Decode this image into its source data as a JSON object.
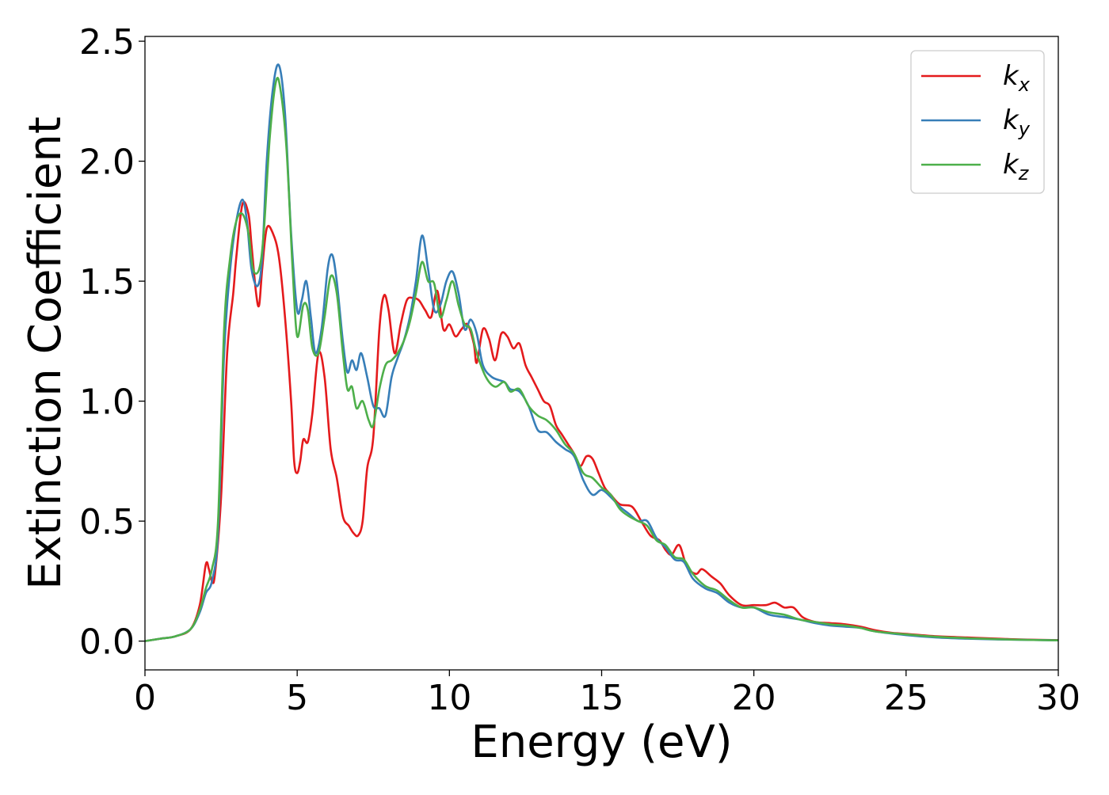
{
  "chart_data": {
    "type": "line",
    "xlabel": "Energy (eV)",
    "ylabel": "Extinction Coefficient",
    "xlim": [
      0,
      30
    ],
    "ylim": [
      -0.12,
      2.52
    ],
    "x_ticks": [
      0,
      5,
      10,
      15,
      20,
      25,
      30
    ],
    "x_tick_labels": [
      "0",
      "5",
      "10",
      "15",
      "20",
      "25",
      "30"
    ],
    "y_ticks": [
      0.0,
      0.5,
      1.0,
      1.5,
      2.0,
      2.5
    ],
    "y_tick_labels": [
      "0.0",
      "0.5",
      "1.0",
      "1.5",
      "2.0",
      "2.5"
    ],
    "grid": false,
    "legend_position": "top-right",
    "series": [
      {
        "name": "k_x",
        "label_base": "k",
        "label_sub": "x",
        "color": "#e41a1c",
        "points": [
          [
            0,
            0
          ],
          [
            0.5,
            0.01
          ],
          [
            1,
            0.02
          ],
          [
            1.5,
            0.05
          ],
          [
            1.8,
            0.15
          ],
          [
            2.0,
            0.32
          ],
          [
            2.1,
            0.3
          ],
          [
            2.2,
            0.25
          ],
          [
            2.3,
            0.28
          ],
          [
            2.5,
            0.6
          ],
          [
            2.7,
            1.2
          ],
          [
            2.9,
            1.45
          ],
          [
            3.0,
            1.6
          ],
          [
            3.2,
            1.82
          ],
          [
            3.4,
            1.78
          ],
          [
            3.5,
            1.65
          ],
          [
            3.65,
            1.45
          ],
          [
            3.75,
            1.4
          ],
          [
            3.85,
            1.55
          ],
          [
            4.0,
            1.72
          ],
          [
            4.2,
            1.7
          ],
          [
            4.4,
            1.6
          ],
          [
            4.6,
            1.35
          ],
          [
            4.8,
            1.0
          ],
          [
            4.9,
            0.75
          ],
          [
            5.0,
            0.7
          ],
          [
            5.1,
            0.75
          ],
          [
            5.2,
            0.84
          ],
          [
            5.35,
            0.83
          ],
          [
            5.5,
            0.95
          ],
          [
            5.7,
            1.2
          ],
          [
            5.9,
            1.1
          ],
          [
            6.1,
            0.8
          ],
          [
            6.3,
            0.68
          ],
          [
            6.5,
            0.52
          ],
          [
            6.7,
            0.48
          ],
          [
            6.85,
            0.45
          ],
          [
            7.0,
            0.44
          ],
          [
            7.15,
            0.5
          ],
          [
            7.3,
            0.72
          ],
          [
            7.5,
            0.85
          ],
          [
            7.7,
            1.3
          ],
          [
            7.85,
            1.44
          ],
          [
            8.0,
            1.38
          ],
          [
            8.2,
            1.2
          ],
          [
            8.4,
            1.32
          ],
          [
            8.6,
            1.42
          ],
          [
            8.8,
            1.43
          ],
          [
            9.0,
            1.42
          ],
          [
            9.2,
            1.38
          ],
          [
            9.4,
            1.35
          ],
          [
            9.6,
            1.46
          ],
          [
            9.8,
            1.3
          ],
          [
            10.0,
            1.32
          ],
          [
            10.2,
            1.27
          ],
          [
            10.4,
            1.3
          ],
          [
            10.6,
            1.32
          ],
          [
            10.8,
            1.24
          ],
          [
            10.9,
            1.16
          ],
          [
            11.1,
            1.3
          ],
          [
            11.3,
            1.26
          ],
          [
            11.5,
            1.17
          ],
          [
            11.7,
            1.28
          ],
          [
            11.9,
            1.27
          ],
          [
            12.1,
            1.22
          ],
          [
            12.3,
            1.24
          ],
          [
            12.5,
            1.15
          ],
          [
            12.7,
            1.1
          ],
          [
            12.9,
            1.05
          ],
          [
            13.1,
            1.0
          ],
          [
            13.3,
            0.98
          ],
          [
            13.5,
            0.9
          ],
          [
            13.7,
            0.86
          ],
          [
            13.9,
            0.82
          ],
          [
            14.1,
            0.78
          ],
          [
            14.3,
            0.73
          ],
          [
            14.5,
            0.77
          ],
          [
            14.7,
            0.76
          ],
          [
            14.9,
            0.7
          ],
          [
            15.1,
            0.64
          ],
          [
            15.3,
            0.61
          ],
          [
            15.6,
            0.57
          ],
          [
            16.0,
            0.56
          ],
          [
            16.3,
            0.5
          ],
          [
            16.6,
            0.44
          ],
          [
            16.9,
            0.42
          ],
          [
            17.1,
            0.38
          ],
          [
            17.3,
            0.36
          ],
          [
            17.55,
            0.4
          ],
          [
            17.8,
            0.31
          ],
          [
            18.1,
            0.28
          ],
          [
            18.3,
            0.3
          ],
          [
            18.6,
            0.27
          ],
          [
            18.9,
            0.24
          ],
          [
            19.2,
            0.19
          ],
          [
            19.6,
            0.15
          ],
          [
            20.0,
            0.15
          ],
          [
            20.4,
            0.15
          ],
          [
            20.7,
            0.16
          ],
          [
            21.0,
            0.14
          ],
          [
            21.3,
            0.14
          ],
          [
            21.6,
            0.1
          ],
          [
            22.0,
            0.08
          ],
          [
            22.5,
            0.075
          ],
          [
            23.0,
            0.07
          ],
          [
            23.5,
            0.06
          ],
          [
            24.0,
            0.045
          ],
          [
            24.5,
            0.035
          ],
          [
            25.0,
            0.03
          ],
          [
            26.0,
            0.02
          ],
          [
            27.0,
            0.015
          ],
          [
            28.0,
            0.01
          ],
          [
            29.0,
            0.006
          ],
          [
            30.0,
            0.004
          ]
        ]
      },
      {
        "name": "k_y",
        "label_base": "k",
        "label_sub": "y",
        "color": "#377eb8",
        "points": [
          [
            0,
            0
          ],
          [
            0.5,
            0.01
          ],
          [
            1,
            0.02
          ],
          [
            1.5,
            0.05
          ],
          [
            1.8,
            0.12
          ],
          [
            2.0,
            0.2
          ],
          [
            2.2,
            0.25
          ],
          [
            2.4,
            0.45
          ],
          [
            2.6,
            1.2
          ],
          [
            2.8,
            1.55
          ],
          [
            3.0,
            1.75
          ],
          [
            3.2,
            1.84
          ],
          [
            3.35,
            1.75
          ],
          [
            3.5,
            1.55
          ],
          [
            3.7,
            1.48
          ],
          [
            3.85,
            1.6
          ],
          [
            4.0,
            2.0
          ],
          [
            4.2,
            2.3
          ],
          [
            4.4,
            2.4
          ],
          [
            4.6,
            2.2
          ],
          [
            4.8,
            1.7
          ],
          [
            5.0,
            1.38
          ],
          [
            5.15,
            1.42
          ],
          [
            5.3,
            1.5
          ],
          [
            5.45,
            1.35
          ],
          [
            5.6,
            1.2
          ],
          [
            5.8,
            1.3
          ],
          [
            6.0,
            1.55
          ],
          [
            6.15,
            1.61
          ],
          [
            6.3,
            1.5
          ],
          [
            6.5,
            1.25
          ],
          [
            6.65,
            1.12
          ],
          [
            6.8,
            1.17
          ],
          [
            6.95,
            1.13
          ],
          [
            7.1,
            1.2
          ],
          [
            7.3,
            1.1
          ],
          [
            7.5,
            0.98
          ],
          [
            7.7,
            0.97
          ],
          [
            7.9,
            0.94
          ],
          [
            8.1,
            1.1
          ],
          [
            8.3,
            1.18
          ],
          [
            8.5,
            1.25
          ],
          [
            8.7,
            1.35
          ],
          [
            8.9,
            1.5
          ],
          [
            9.1,
            1.69
          ],
          [
            9.3,
            1.55
          ],
          [
            9.5,
            1.38
          ],
          [
            9.7,
            1.4
          ],
          [
            9.9,
            1.5
          ],
          [
            10.1,
            1.54
          ],
          [
            10.3,
            1.45
          ],
          [
            10.5,
            1.3
          ],
          [
            10.7,
            1.34
          ],
          [
            10.9,
            1.28
          ],
          [
            11.1,
            1.15
          ],
          [
            11.4,
            1.1
          ],
          [
            11.8,
            1.08
          ],
          [
            12.0,
            1.05
          ],
          [
            12.3,
            1.04
          ],
          [
            12.6,
            0.98
          ],
          [
            12.9,
            0.88
          ],
          [
            13.2,
            0.87
          ],
          [
            13.5,
            0.83
          ],
          [
            13.8,
            0.8
          ],
          [
            14.1,
            0.77
          ],
          [
            14.4,
            0.67
          ],
          [
            14.7,
            0.61
          ],
          [
            15.0,
            0.63
          ],
          [
            15.3,
            0.6
          ],
          [
            15.6,
            0.56
          ],
          [
            15.9,
            0.53
          ],
          [
            16.2,
            0.5
          ],
          [
            16.5,
            0.5
          ],
          [
            16.8,
            0.43
          ],
          [
            17.1,
            0.39
          ],
          [
            17.4,
            0.34
          ],
          [
            17.7,
            0.33
          ],
          [
            18.0,
            0.26
          ],
          [
            18.4,
            0.22
          ],
          [
            18.8,
            0.2
          ],
          [
            19.2,
            0.16
          ],
          [
            19.6,
            0.14
          ],
          [
            20.0,
            0.14
          ],
          [
            20.5,
            0.11
          ],
          [
            21.0,
            0.1
          ],
          [
            21.5,
            0.09
          ],
          [
            22.0,
            0.075
          ],
          [
            22.5,
            0.065
          ],
          [
            23.0,
            0.06
          ],
          [
            23.5,
            0.055
          ],
          [
            24.0,
            0.04
          ],
          [
            25.0,
            0.025
          ],
          [
            26.0,
            0.015
          ],
          [
            27.0,
            0.01
          ],
          [
            28.0,
            0.007
          ],
          [
            29.0,
            0.005
          ],
          [
            30.0,
            0.003
          ]
        ]
      },
      {
        "name": "k_z",
        "label_base": "k",
        "label_sub": "z",
        "color": "#4daf4a",
        "points": [
          [
            0,
            0
          ],
          [
            0.5,
            0.01
          ],
          [
            1,
            0.02
          ],
          [
            1.5,
            0.05
          ],
          [
            1.8,
            0.13
          ],
          [
            2.0,
            0.22
          ],
          [
            2.2,
            0.3
          ],
          [
            2.4,
            0.5
          ],
          [
            2.6,
            1.3
          ],
          [
            2.8,
            1.6
          ],
          [
            3.0,
            1.75
          ],
          [
            3.2,
            1.78
          ],
          [
            3.4,
            1.7
          ],
          [
            3.55,
            1.55
          ],
          [
            3.75,
            1.55
          ],
          [
            3.9,
            1.7
          ],
          [
            4.1,
            2.1
          ],
          [
            4.3,
            2.33
          ],
          [
            4.45,
            2.3
          ],
          [
            4.65,
            2.05
          ],
          [
            4.85,
            1.55
          ],
          [
            5.0,
            1.27
          ],
          [
            5.2,
            1.4
          ],
          [
            5.35,
            1.38
          ],
          [
            5.5,
            1.22
          ],
          [
            5.7,
            1.2
          ],
          [
            5.9,
            1.35
          ],
          [
            6.1,
            1.52
          ],
          [
            6.3,
            1.45
          ],
          [
            6.5,
            1.2
          ],
          [
            6.65,
            1.05
          ],
          [
            6.8,
            1.06
          ],
          [
            6.95,
            0.97
          ],
          [
            7.15,
            1.0
          ],
          [
            7.35,
            0.92
          ],
          [
            7.5,
            0.9
          ],
          [
            7.7,
            1.05
          ],
          [
            7.9,
            1.15
          ],
          [
            8.1,
            1.17
          ],
          [
            8.3,
            1.2
          ],
          [
            8.5,
            1.25
          ],
          [
            8.7,
            1.33
          ],
          [
            8.9,
            1.45
          ],
          [
            9.1,
            1.58
          ],
          [
            9.3,
            1.5
          ],
          [
            9.5,
            1.49
          ],
          [
            9.7,
            1.35
          ],
          [
            9.9,
            1.42
          ],
          [
            10.1,
            1.5
          ],
          [
            10.3,
            1.4
          ],
          [
            10.5,
            1.32
          ],
          [
            10.7,
            1.3
          ],
          [
            10.9,
            1.2
          ],
          [
            11.2,
            1.1
          ],
          [
            11.5,
            1.06
          ],
          [
            11.8,
            1.08
          ],
          [
            12.0,
            1.04
          ],
          [
            12.3,
            1.05
          ],
          [
            12.6,
            0.98
          ],
          [
            12.9,
            0.94
          ],
          [
            13.2,
            0.92
          ],
          [
            13.5,
            0.88
          ],
          [
            13.8,
            0.82
          ],
          [
            14.1,
            0.78
          ],
          [
            14.4,
            0.7
          ],
          [
            14.7,
            0.68
          ],
          [
            15.0,
            0.64
          ],
          [
            15.3,
            0.61
          ],
          [
            15.6,
            0.55
          ],
          [
            15.9,
            0.52
          ],
          [
            16.2,
            0.5
          ],
          [
            16.5,
            0.48
          ],
          [
            16.8,
            0.42
          ],
          [
            17.1,
            0.4
          ],
          [
            17.4,
            0.35
          ],
          [
            17.7,
            0.34
          ],
          [
            18.0,
            0.28
          ],
          [
            18.4,
            0.23
          ],
          [
            18.8,
            0.21
          ],
          [
            19.2,
            0.17
          ],
          [
            19.6,
            0.14
          ],
          [
            20.0,
            0.14
          ],
          [
            20.5,
            0.12
          ],
          [
            21.0,
            0.11
          ],
          [
            21.5,
            0.09
          ],
          [
            22.0,
            0.08
          ],
          [
            22.5,
            0.07
          ],
          [
            23.0,
            0.065
          ],
          [
            23.5,
            0.055
          ],
          [
            24.0,
            0.04
          ],
          [
            25.0,
            0.028
          ],
          [
            26.0,
            0.018
          ],
          [
            27.0,
            0.012
          ],
          [
            28.0,
            0.008
          ],
          [
            29.0,
            0.005
          ],
          [
            30.0,
            0.003
          ]
        ]
      }
    ]
  }
}
